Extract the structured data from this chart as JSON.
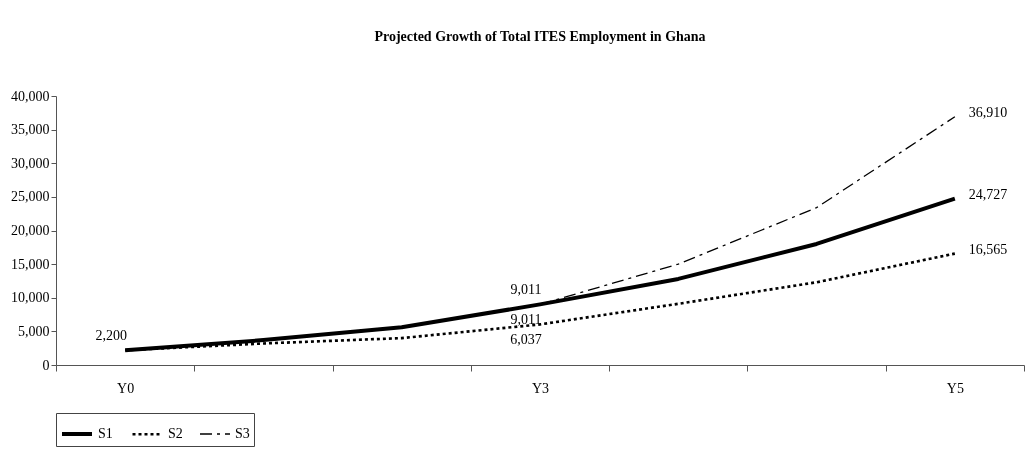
{
  "chart_data": {
    "type": "line",
    "title": "Projected Growth of Total ITES Employment in Ghana",
    "categories": [
      "Y0",
      null,
      null,
      "Y3",
      null,
      null,
      "Y5"
    ],
    "ylim": [
      0,
      40000
    ],
    "yticks": [
      0,
      {
        "value": 5000,
        "label": "5,000"
      },
      {
        "value": 10000,
        "label": "10,000"
      },
      {
        "value": 15000,
        "label": "15,000"
      },
      {
        "value": 20000,
        "label": "20,000"
      },
      {
        "value": 25000,
        "label": "25,000"
      },
      {
        "value": 30000,
        "label": "30,000"
      },
      {
        "value": 35000,
        "label": "35,000"
      },
      {
        "value": 40000,
        "label": "40,000"
      }
    ],
    "grid": false,
    "legend": "bottom",
    "series": [
      {
        "name": "S1",
        "color": "#000000",
        "line_style": "solid",
        "values": [
          2200,
          3700,
          5600,
          9011,
          12800,
          18000,
          24727
        ],
        "value_labels": [
          "2,200",
          null,
          null,
          "9,011",
          null,
          null,
          "24,727"
        ]
      },
      {
        "name": "S2",
        "color": "#000000",
        "line_style": "dotted",
        "values": [
          2200,
          3200,
          4000,
          6037,
          9100,
          12300,
          16565
        ],
        "value_labels": [
          null,
          null,
          null,
          "6,037",
          null,
          null,
          "16,565"
        ]
      },
      {
        "name": "S3",
        "color": "#000000",
        "line_style": "dashed",
        "values": [
          null,
          null,
          null,
          9011,
          15000,
          23400,
          36910
        ],
        "value_labels": [
          null,
          null,
          null,
          "9,011",
          null,
          null,
          "36,910"
        ]
      }
    ]
  }
}
